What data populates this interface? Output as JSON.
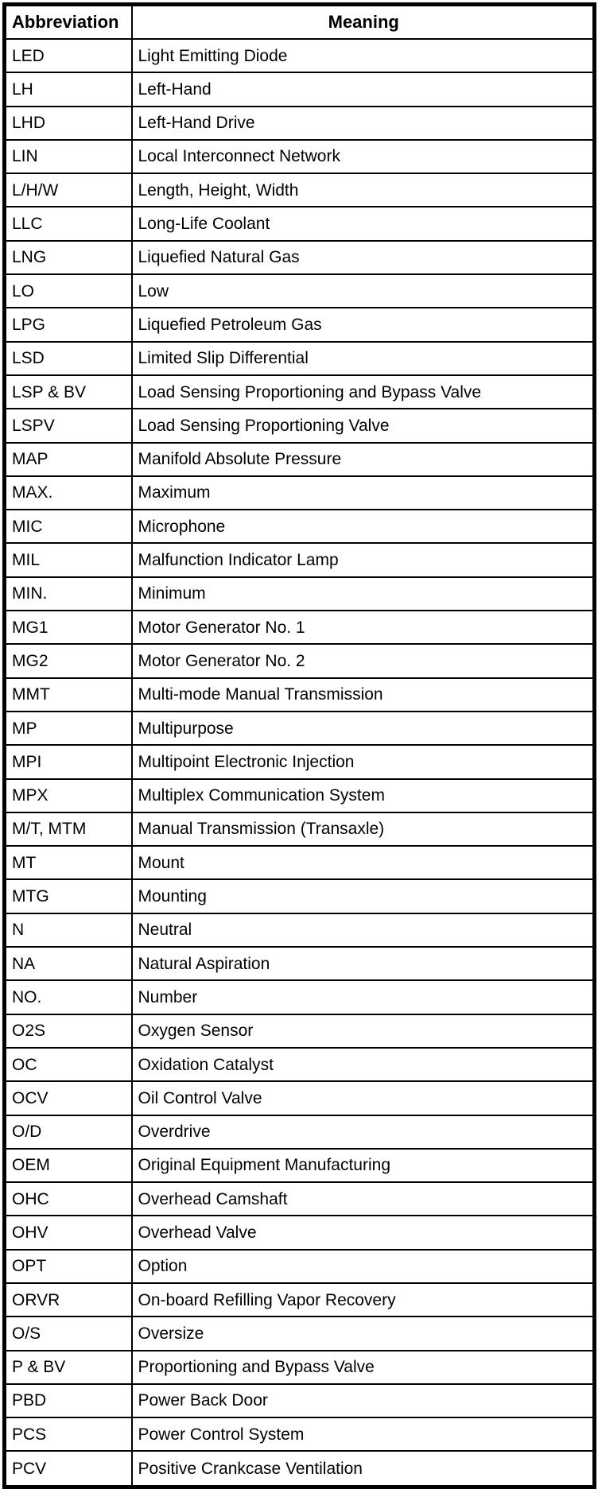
{
  "table": {
    "headers": [
      "Abbreviation",
      "Meaning"
    ],
    "rows": [
      {
        "abbr": "LED",
        "meaning": "Light Emitting Diode"
      },
      {
        "abbr": "LH",
        "meaning": "Left-Hand"
      },
      {
        "abbr": "LHD",
        "meaning": "Left-Hand Drive"
      },
      {
        "abbr": "LIN",
        "meaning": "Local Interconnect Network"
      },
      {
        "abbr": "L/H/W",
        "meaning": "Length, Height, Width"
      },
      {
        "abbr": "LLC",
        "meaning": "Long-Life Coolant"
      },
      {
        "abbr": "LNG",
        "meaning": "Liquefied Natural Gas"
      },
      {
        "abbr": "LO",
        "meaning": "Low"
      },
      {
        "abbr": "LPG",
        "meaning": "Liquefied Petroleum Gas"
      },
      {
        "abbr": "LSD",
        "meaning": "Limited Slip Differential"
      },
      {
        "abbr": "LSP & BV",
        "meaning": "Load Sensing Proportioning and Bypass Valve"
      },
      {
        "abbr": "LSPV",
        "meaning": "Load Sensing Proportioning Valve"
      },
      {
        "abbr": "MAP",
        "meaning": "Manifold Absolute Pressure"
      },
      {
        "abbr": "MAX.",
        "meaning": "Maximum"
      },
      {
        "abbr": "MIC",
        "meaning": "Microphone"
      },
      {
        "abbr": "MIL",
        "meaning": "Malfunction Indicator Lamp"
      },
      {
        "abbr": "MIN.",
        "meaning": "Minimum"
      },
      {
        "abbr": "MG1",
        "meaning": "Motor Generator No. 1"
      },
      {
        "abbr": "MG2",
        "meaning": "Motor Generator No. 2"
      },
      {
        "abbr": "MMT",
        "meaning": "Multi-mode Manual Transmission"
      },
      {
        "abbr": "MP",
        "meaning": "Multipurpose"
      },
      {
        "abbr": "MPI",
        "meaning": "Multipoint Electronic Injection"
      },
      {
        "abbr": "MPX",
        "meaning": "Multiplex Communication System"
      },
      {
        "abbr": "M/T, MTM",
        "meaning": "Manual Transmission (Transaxle)"
      },
      {
        "abbr": "MT",
        "meaning": "Mount"
      },
      {
        "abbr": "MTG",
        "meaning": "Mounting"
      },
      {
        "abbr": "N",
        "meaning": "Neutral"
      },
      {
        "abbr": "NA",
        "meaning": "Natural Aspiration"
      },
      {
        "abbr": "NO.",
        "meaning": "Number"
      },
      {
        "abbr": "O2S",
        "meaning": "Oxygen Sensor"
      },
      {
        "abbr": "OC",
        "meaning": "Oxidation Catalyst"
      },
      {
        "abbr": "OCV",
        "meaning": "Oil Control Valve"
      },
      {
        "abbr": "O/D",
        "meaning": "Overdrive"
      },
      {
        "abbr": "OEM",
        "meaning": "Original Equipment Manufacturing"
      },
      {
        "abbr": "OHC",
        "meaning": "Overhead Camshaft"
      },
      {
        "abbr": "OHV",
        "meaning": "Overhead Valve"
      },
      {
        "abbr": "OPT",
        "meaning": "Option"
      },
      {
        "abbr": "ORVR",
        "meaning": "On-board Refilling Vapor Recovery"
      },
      {
        "abbr": "O/S",
        "meaning": "Oversize"
      },
      {
        "abbr": "P & BV",
        "meaning": "Proportioning and Bypass Valve"
      },
      {
        "abbr": "PBD",
        "meaning": "Power Back Door"
      },
      {
        "abbr": "PCS",
        "meaning": "Power Control System"
      },
      {
        "abbr": "PCV",
        "meaning": "Positive Crankcase Ventilation"
      }
    ]
  },
  "colors": {
    "border": "#000000",
    "text": "#000000",
    "background": "#ffffff"
  }
}
